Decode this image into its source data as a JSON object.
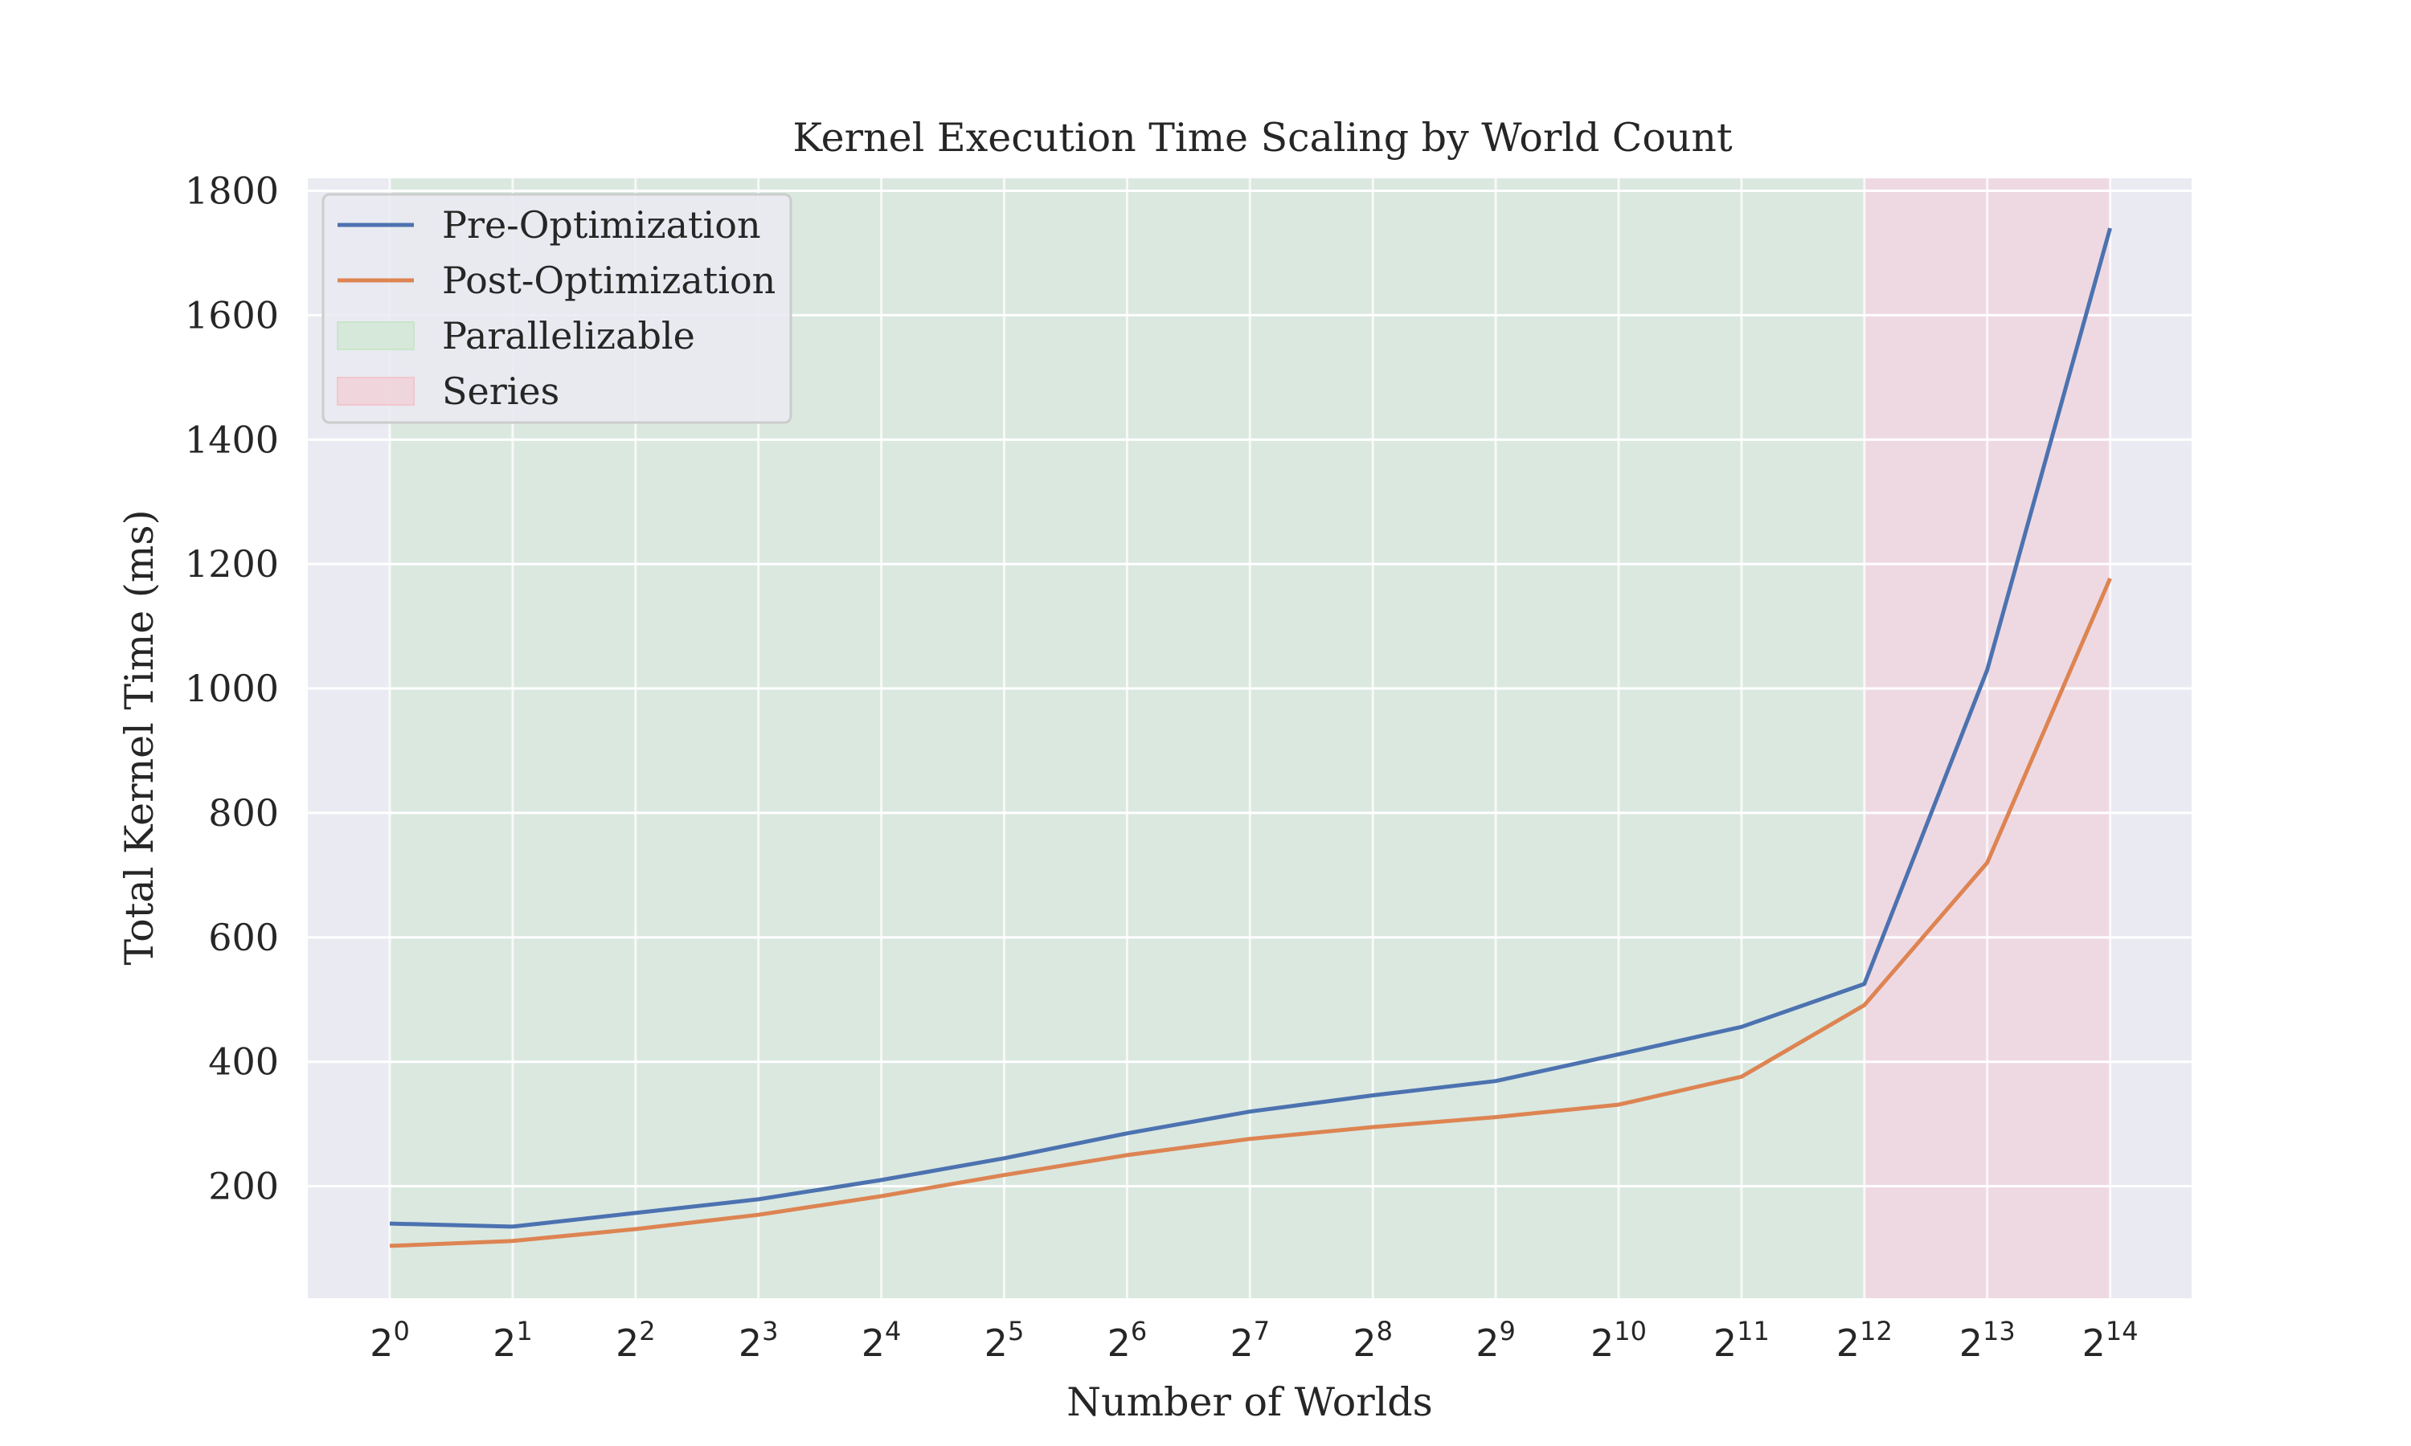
{
  "chart_data": {
    "type": "line",
    "title": "Kernel Execution Time Scaling by World Count",
    "xlabel": "Number of Worlds",
    "ylabel": "Total Kernel Time (ms)",
    "x_scale": "log2",
    "x": [
      1,
      2,
      4,
      8,
      16,
      32,
      64,
      128,
      256,
      512,
      1024,
      2048,
      4096,
      8192,
      16384
    ],
    "x_tick_base": "2",
    "x_tick_exponents": [
      "0",
      "1",
      "2",
      "3",
      "4",
      "5",
      "6",
      "7",
      "8",
      "9",
      "10",
      "11",
      "12",
      "13",
      "14"
    ],
    "y_ticks": [
      "200",
      "400",
      "600",
      "800",
      "1000",
      "1200",
      "1400",
      "1600",
      "1800"
    ],
    "ylim": [
      20,
      1820
    ],
    "grid": true,
    "legend_position": "top-left",
    "series": [
      {
        "name": "Pre-Optimization",
        "color": "#4c72b0",
        "values": [
          140,
          135,
          157,
          179,
          210,
          245,
          285,
          320,
          346,
          369,
          412,
          456,
          525,
          1030,
          1740
        ]
      },
      {
        "name": "Post-Optimization",
        "color": "#dd8452",
        "values": [
          104,
          112,
          131,
          154,
          184,
          218,
          250,
          276,
          295,
          311,
          331,
          376,
          491,
          720,
          1177
        ]
      }
    ],
    "regions": [
      {
        "name": "Parallelizable",
        "x_start": 1,
        "x_end": 4096,
        "color": "#c8e6c9"
      },
      {
        "name": "Series",
        "x_start": 4096,
        "x_end": 16384,
        "color": "#f3c6cf"
      }
    ],
    "colors": {
      "plot_background": "#eaeaf2",
      "grid": "#ffffff",
      "text": "#262626"
    }
  }
}
